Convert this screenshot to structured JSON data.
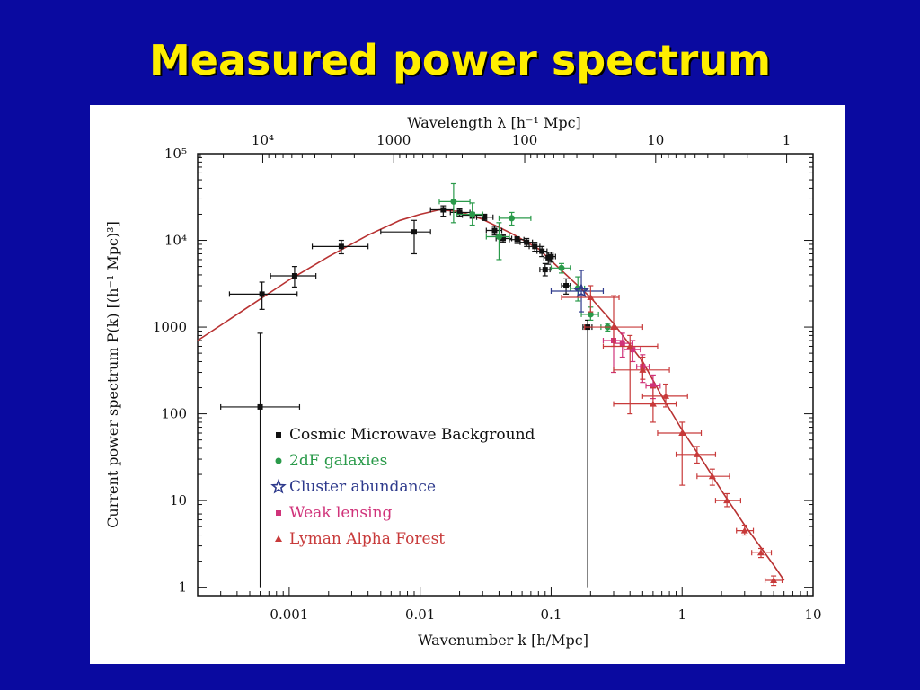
{
  "slide": {
    "title": "Measured power spectrum"
  },
  "chart_data": {
    "type": "scatter",
    "xscale": "log",
    "yscale": "log",
    "xlim": [
      0.0002,
      10
    ],
    "ylim": [
      0.8,
      100000
    ],
    "xlabel": "Wavenumber k [h/Mpc]",
    "ylabel": "Current power spectrum P(k) [(h⁻¹ Mpc)³]",
    "top_xlabel": "Wavelength λ [h⁻¹ Mpc]",
    "x_ticks": [
      {
        "value": 0.001,
        "label": "0.001"
      },
      {
        "value": 0.01,
        "label": "0.01"
      },
      {
        "value": 0.1,
        "label": "0.1"
      },
      {
        "value": 1,
        "label": "1"
      },
      {
        "value": 10,
        "label": "10"
      }
    ],
    "y_ticks": [
      {
        "value": 1,
        "label": "1"
      },
      {
        "value": 10,
        "label": "10"
      },
      {
        "value": 100,
        "label": "100"
      },
      {
        "value": 1000,
        "label": "1000"
      },
      {
        "value": 10000,
        "label": "10⁴"
      },
      {
        "value": 100000,
        "label": "10⁵"
      }
    ],
    "top_ticks": [
      {
        "value": 10000,
        "label": "10⁴"
      },
      {
        "value": 1000,
        "label": "1000"
      },
      {
        "value": 100,
        "label": "100"
      },
      {
        "value": 10,
        "label": "10"
      },
      {
        "value": 1,
        "label": "1"
      }
    ],
    "grid": false,
    "legend_position": "lower-left",
    "colors": {
      "background": "#0a0aa0",
      "title": "#ffee00",
      "model_curve": "#b83232",
      "cmb": "#111111",
      "galaxies": "#2a9a4a",
      "clusters": "#2e3a8c",
      "lensing": "#d0337a",
      "lyman": "#c83a3a"
    },
    "model_curve": [
      [
        0.0002,
        700
      ],
      [
        0.0005,
        1750
      ],
      [
        0.001,
        3500
      ],
      [
        0.002,
        6500
      ],
      [
        0.004,
        11500
      ],
      [
        0.007,
        17000
      ],
      [
        0.01,
        20000
      ],
      [
        0.014,
        22500
      ],
      [
        0.02,
        21500
      ],
      [
        0.03,
        17500
      ],
      [
        0.05,
        12000
      ],
      [
        0.08,
        8000
      ],
      [
        0.12,
        4500
      ],
      [
        0.2,
        2200
      ],
      [
        0.3,
        1100
      ],
      [
        0.5,
        400
      ],
      [
        0.7,
        160
      ],
      [
        1,
        65
      ],
      [
        1.5,
        26
      ],
      [
        2,
        13
      ],
      [
        3,
        5.2
      ],
      [
        5,
        1.8
      ],
      [
        6,
        1.2
      ]
    ],
    "series": [
      {
        "name": "Cosmic Microwave Background",
        "marker": "square",
        "color_key": "cmb",
        "points": [
          {
            "x": 0.0006,
            "y": 120,
            "xerr": [
              0.0003,
              0.0012
            ],
            "yerr": [
              1,
              850
            ]
          },
          {
            "x": 0.00062,
            "y": 2400,
            "xerr": [
              0.00035,
              0.00115
            ],
            "yerr": [
              1600,
              3300
            ]
          },
          {
            "x": 0.0011,
            "y": 3900,
            "xerr": [
              0.00072,
              0.0016
            ],
            "yerr": [
              2900,
              5000
            ]
          },
          {
            "x": 0.0025,
            "y": 8500,
            "xerr": [
              0.0015,
              0.004
            ],
            "yerr": [
              7000,
              10000
            ]
          },
          {
            "x": 0.009,
            "y": 12500,
            "xerr": [
              0.005,
              0.012
            ],
            "yerr": [
              7000,
              17000
            ]
          },
          {
            "x": 0.015,
            "y": 22500,
            "xerr": [
              0.012,
              0.018
            ],
            "yerr": [
              19000,
              25000
            ]
          },
          {
            "x": 0.02,
            "y": 21000,
            "xerr": [
              0.017,
              0.024
            ],
            "yerr": [
              19000,
              23000
            ]
          },
          {
            "x": 0.025,
            "y": 19500,
            "xerr": [
              0.021,
              0.03
            ],
            "yerr": [
              18000,
              21000
            ]
          },
          {
            "x": 0.031,
            "y": 18500,
            "xerr": [
              0.027,
              0.036
            ],
            "yerr": [
              17000,
              20000
            ]
          },
          {
            "x": 0.037,
            "y": 13000,
            "xerr": [
              0.032,
              0.042
            ],
            "yerr": [
              11500,
              14500
            ]
          },
          {
            "x": 0.043,
            "y": 10500,
            "xerr": [
              0.038,
              0.05
            ],
            "yerr": [
              9500,
              11500
            ]
          },
          {
            "x": 0.055,
            "y": 10200,
            "xerr": [
              0.048,
              0.062
            ],
            "yerr": [
              9200,
              11000
            ]
          },
          {
            "x": 0.065,
            "y": 9500,
            "xerr": [
              0.058,
              0.072
            ],
            "yerr": [
              8500,
              10500
            ]
          },
          {
            "x": 0.075,
            "y": 8500,
            "xerr": [
              0.068,
              0.082
            ],
            "yerr": [
              7500,
              9500
            ]
          },
          {
            "x": 0.085,
            "y": 7500,
            "xerr": [
              0.078,
              0.093
            ],
            "yerr": [
              6500,
              8500
            ]
          },
          {
            "x": 0.095,
            "y": 6300,
            "xerr": [
              0.088,
              0.103
            ],
            "yerr": [
              5300,
              7300
            ]
          },
          {
            "x": 0.09,
            "y": 4600,
            "xerr": [
              0.082,
              0.098
            ],
            "yerr": [
              3900,
              5400
            ]
          },
          {
            "x": 0.1,
            "y": 6500,
            "xerr": [
              0.093,
              0.108
            ],
            "yerr": [
              5600,
              7300
            ]
          },
          {
            "x": 0.13,
            "y": 3000,
            "xerr": [
              0.12,
              0.14
            ],
            "yerr": [
              2400,
              3600
            ]
          },
          {
            "x": 0.19,
            "y": 1000,
            "xerr": [
              0.175,
              0.205
            ],
            "yerr": [
              1,
              1200
            ]
          }
        ]
      },
      {
        "name": "2dF galaxies",
        "marker": "circle",
        "color_key": "galaxies",
        "points": [
          {
            "x": 0.018,
            "y": 28000,
            "xerr": [
              0.014,
              0.024
            ],
            "yerr": [
              16000,
              45000
            ]
          },
          {
            "x": 0.025,
            "y": 20000,
            "xerr": [
              0.019,
              0.03
            ],
            "yerr": [
              15000,
              27000
            ]
          },
          {
            "x": 0.05,
            "y": 18000,
            "xerr": [
              0.04,
              0.07
            ],
            "yerr": [
              15000,
              21000
            ]
          },
          {
            "x": 0.04,
            "y": 11000,
            "xerr": [
              0.032,
              0.048
            ],
            "yerr": [
              6000,
              16000
            ]
          },
          {
            "x": 0.12,
            "y": 4800,
            "xerr": [
              0.1,
              0.14
            ],
            "yerr": [
              4200,
              5400
            ]
          },
          {
            "x": 0.16,
            "y": 2800,
            "xerr": [
              0.14,
              0.18
            ],
            "yerr": [
              2000,
              3800
            ]
          },
          {
            "x": 0.2,
            "y": 1400,
            "xerr": [
              0.17,
              0.23
            ],
            "yerr": [
              1200,
              1700
            ]
          },
          {
            "x": 0.27,
            "y": 1000,
            "xerr": [
              0.24,
              0.3
            ],
            "yerr": [
              900,
              1100
            ]
          }
        ]
      },
      {
        "name": "Cluster abundance",
        "marker": "star",
        "color_key": "clusters",
        "points": [
          {
            "x": 0.17,
            "y": 2600,
            "xerr": [
              0.1,
              0.25
            ],
            "yerr": [
              1500,
              4500
            ]
          }
        ]
      },
      {
        "name": "Weak lensing",
        "marker": "square",
        "color_key": "lensing",
        "points": [
          {
            "x": 0.3,
            "y": 700,
            "xerr": [
              0.25,
              0.36
            ],
            "yerr": [
              300,
              1000
            ]
          },
          {
            "x": 0.35,
            "y": 650,
            "xerr": [
              0.3,
              0.42
            ],
            "yerr": [
              450,
              850
            ]
          },
          {
            "x": 0.42,
            "y": 550,
            "xerr": [
              0.36,
              0.48
            ],
            "yerr": [
              400,
              700
            ]
          },
          {
            "x": 0.5,
            "y": 350,
            "xerr": [
              0.45,
              0.56
            ],
            "yerr": [
              230,
              480
            ]
          },
          {
            "x": 0.6,
            "y": 210,
            "xerr": [
              0.53,
              0.68
            ],
            "yerr": [
              150,
              280
            ]
          }
        ]
      },
      {
        "name": "Lyman Alpha Forest",
        "marker": "triangle",
        "color_key": "lyman",
        "points": [
          {
            "x": 0.2,
            "y": 2200,
            "xerr": [
              0.12,
              0.33
            ],
            "yerr": [
              1500,
              3000
            ]
          },
          {
            "x": 0.3,
            "y": 1000,
            "xerr": [
              0.18,
              0.5
            ],
            "yerr": [
              600,
              2300
            ]
          },
          {
            "x": 0.4,
            "y": 600,
            "xerr": [
              0.25,
              0.65
            ],
            "yerr": [
              100,
              800
            ]
          },
          {
            "x": 0.5,
            "y": 320,
            "xerr": [
              0.3,
              0.8
            ],
            "yerr": [
              250,
              450
            ]
          },
          {
            "x": 0.6,
            "y": 130,
            "xerr": [
              0.3,
              0.9
            ],
            "yerr": [
              80,
              200
            ]
          },
          {
            "x": 0.75,
            "y": 160,
            "xerr": [
              0.5,
              1.1
            ],
            "yerr": [
              120,
              220
            ]
          },
          {
            "x": 1,
            "y": 60,
            "xerr": [
              0.65,
              1.4
            ],
            "yerr": [
              15,
              80
            ]
          },
          {
            "x": 1.3,
            "y": 34,
            "xerr": [
              0.9,
              1.8
            ],
            "yerr": [
              27,
              42
            ]
          },
          {
            "x": 1.7,
            "y": 19,
            "xerr": [
              1.3,
              2.3
            ],
            "yerr": [
              15,
              23
            ]
          },
          {
            "x": 2.2,
            "y": 10,
            "xerr": [
              1.8,
              2.8
            ],
            "yerr": [
              8.5,
              12
            ]
          },
          {
            "x": 3,
            "y": 4.5,
            "xerr": [
              2.6,
              3.5
            ],
            "yerr": [
              4,
              5.2
            ]
          },
          {
            "x": 4,
            "y": 2.5,
            "xerr": [
              3.4,
              4.8
            ],
            "yerr": [
              2.2,
              2.8
            ]
          },
          {
            "x": 5,
            "y": 1.2,
            "xerr": [
              4.3,
              5.8
            ],
            "yerr": [
              1.05,
              1.35
            ]
          }
        ]
      }
    ]
  }
}
